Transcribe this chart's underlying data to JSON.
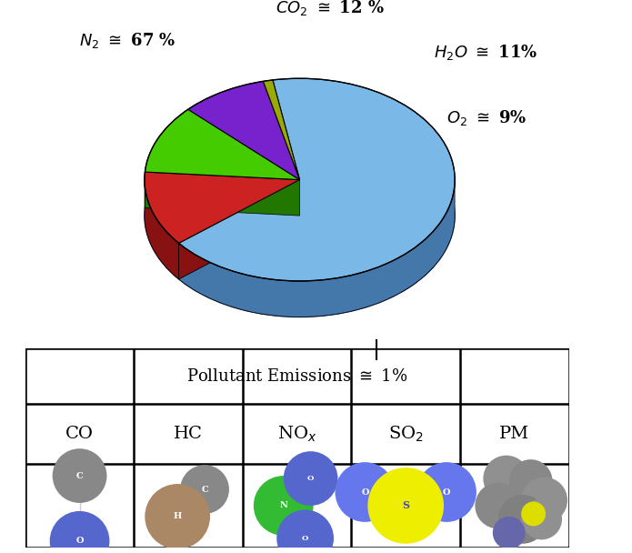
{
  "slices": [
    67,
    12,
    11,
    9,
    1
  ],
  "colors_top": [
    "#7ab8e8",
    "#cc2222",
    "#44cc00",
    "#7722cc",
    "#99aa00"
  ],
  "colors_side": [
    "#4477aa",
    "#881111",
    "#227700",
    "#441188",
    "#667700"
  ],
  "colors_dark": [
    "#335588",
    "#660000",
    "#115500",
    "#220066",
    "#445500"
  ],
  "background_color": "#ffffff",
  "label_N2": "N₂ ≅ 67 %",
  "label_CO2": "CO₂ ≅ 12 %",
  "label_H2O": "H₂O ≅ 11%",
  "label_O2": "O₂ ≅ 9%",
  "table_header": "Pollutant Emissions ≅ 1%",
  "table_cols": [
    "CO",
    "HC",
    "NOₓ",
    "SO₂",
    "PM"
  ]
}
